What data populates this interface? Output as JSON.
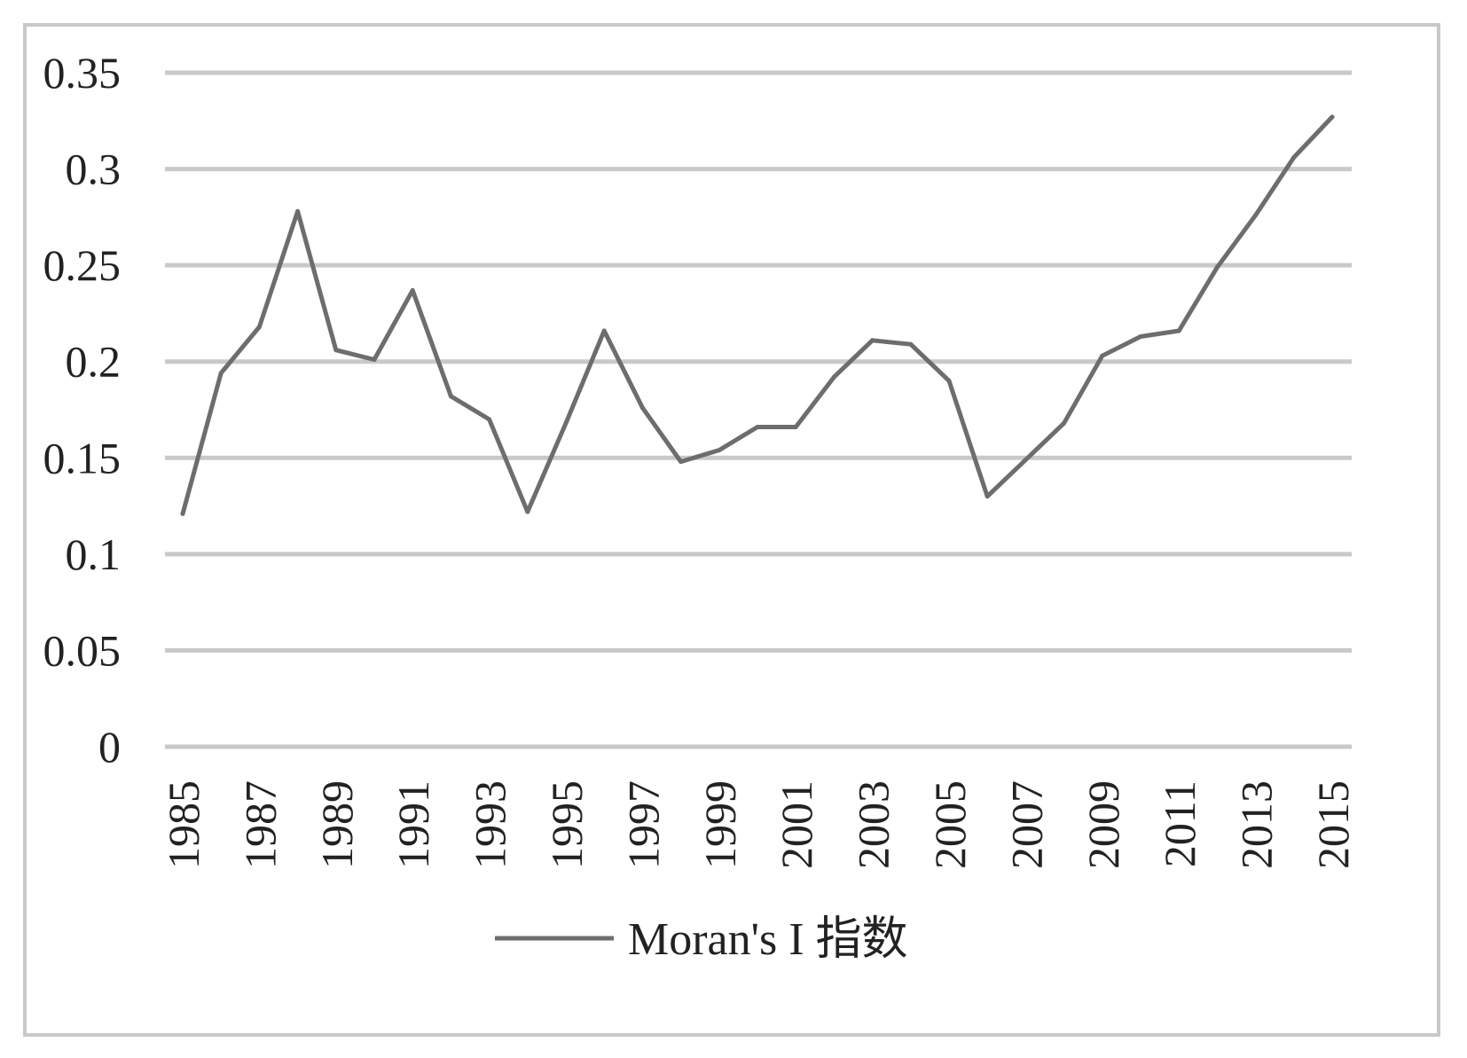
{
  "chart_data": {
    "type": "line",
    "title": "",
    "xlabel": "",
    "ylabel": "",
    "x": [
      "1985",
      "1986",
      "1987",
      "1988",
      "1989",
      "1990",
      "1991",
      "1992",
      "1993",
      "1994",
      "1995",
      "1996",
      "1997",
      "1998",
      "1999",
      "2000",
      "2001",
      "2002",
      "2003",
      "2004",
      "2005",
      "2006",
      "2007",
      "2008",
      "2009",
      "2010",
      "2011",
      "2012",
      "2013",
      "2014",
      "2015"
    ],
    "x_tick_labels": [
      "1985",
      "1987",
      "1989",
      "1991",
      "1993",
      "1995",
      "1997",
      "1999",
      "2001",
      "2003",
      "2005",
      "2007",
      "2009",
      "2011",
      "2013",
      "2015"
    ],
    "y_tick_labels": [
      "0",
      "0.05",
      "0.1",
      "0.15",
      "0.2",
      "0.25",
      "0.3",
      "0.35"
    ],
    "ylim": [
      0,
      0.35
    ],
    "grid": true,
    "legend_position": "bottom",
    "series": [
      {
        "name": "Moran's I 指数",
        "color": "#6d6d6d",
        "values": [
          0.121,
          0.194,
          0.218,
          0.278,
          0.206,
          0.201,
          0.237,
          0.182,
          0.17,
          0.122,
          0.168,
          0.216,
          0.176,
          0.148,
          0.154,
          0.166,
          0.166,
          0.192,
          0.211,
          0.209,
          0.19,
          0.13,
          0.149,
          0.168,
          0.203,
          0.213,
          0.216,
          0.249,
          0.276,
          0.306,
          0.327
        ]
      }
    ]
  },
  "colors": {
    "gridline": "#c9c9c9",
    "frame": "#c9c9c9",
    "text": "#222222"
  }
}
